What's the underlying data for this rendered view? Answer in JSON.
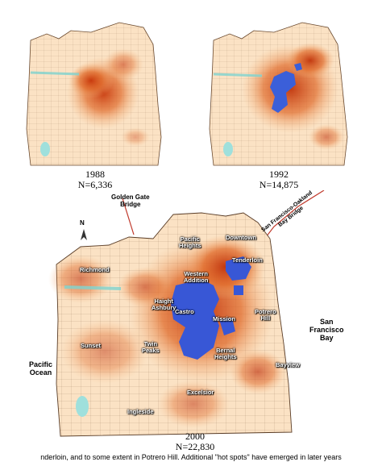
{
  "maps": [
    {
      "year": "1988",
      "n": "N=6,336"
    },
    {
      "year": "1992",
      "n": "N=14,875"
    },
    {
      "year": "2000",
      "n": "N=22,830"
    }
  ],
  "labels": {
    "golden_gate": "Golden Gate\nBridge",
    "bay_bridge": "San Francisco-Oakland\nBay Bridge",
    "north": "N",
    "pacific_heights": "Pacific\nHeights",
    "downtown": "Downtown",
    "tenderloin": "Tenderloin",
    "richmond": "Richmond",
    "western_addition": "Western\nAddition",
    "haight_ashbury": "Haight\nAshbury",
    "castro": "Castro",
    "mission": "Mission",
    "potrero_hill": "Potrero\nHill",
    "sunset": "Sunset",
    "twin_peaks": "Twin\nPeaks",
    "bernal_heights": "Bernal\nHeights",
    "bayview": "Bayview",
    "excelsior": "Excelsior",
    "ingleside": "Ingleside",
    "pacific_ocean": "Pacific\nOcean",
    "sf_bay": "San\nFrancisco\nBay"
  },
  "bottom_text": "nderloin, and to some extent in Potrero Hill. Additional \"hot spots\" have emerged in later years"
}
